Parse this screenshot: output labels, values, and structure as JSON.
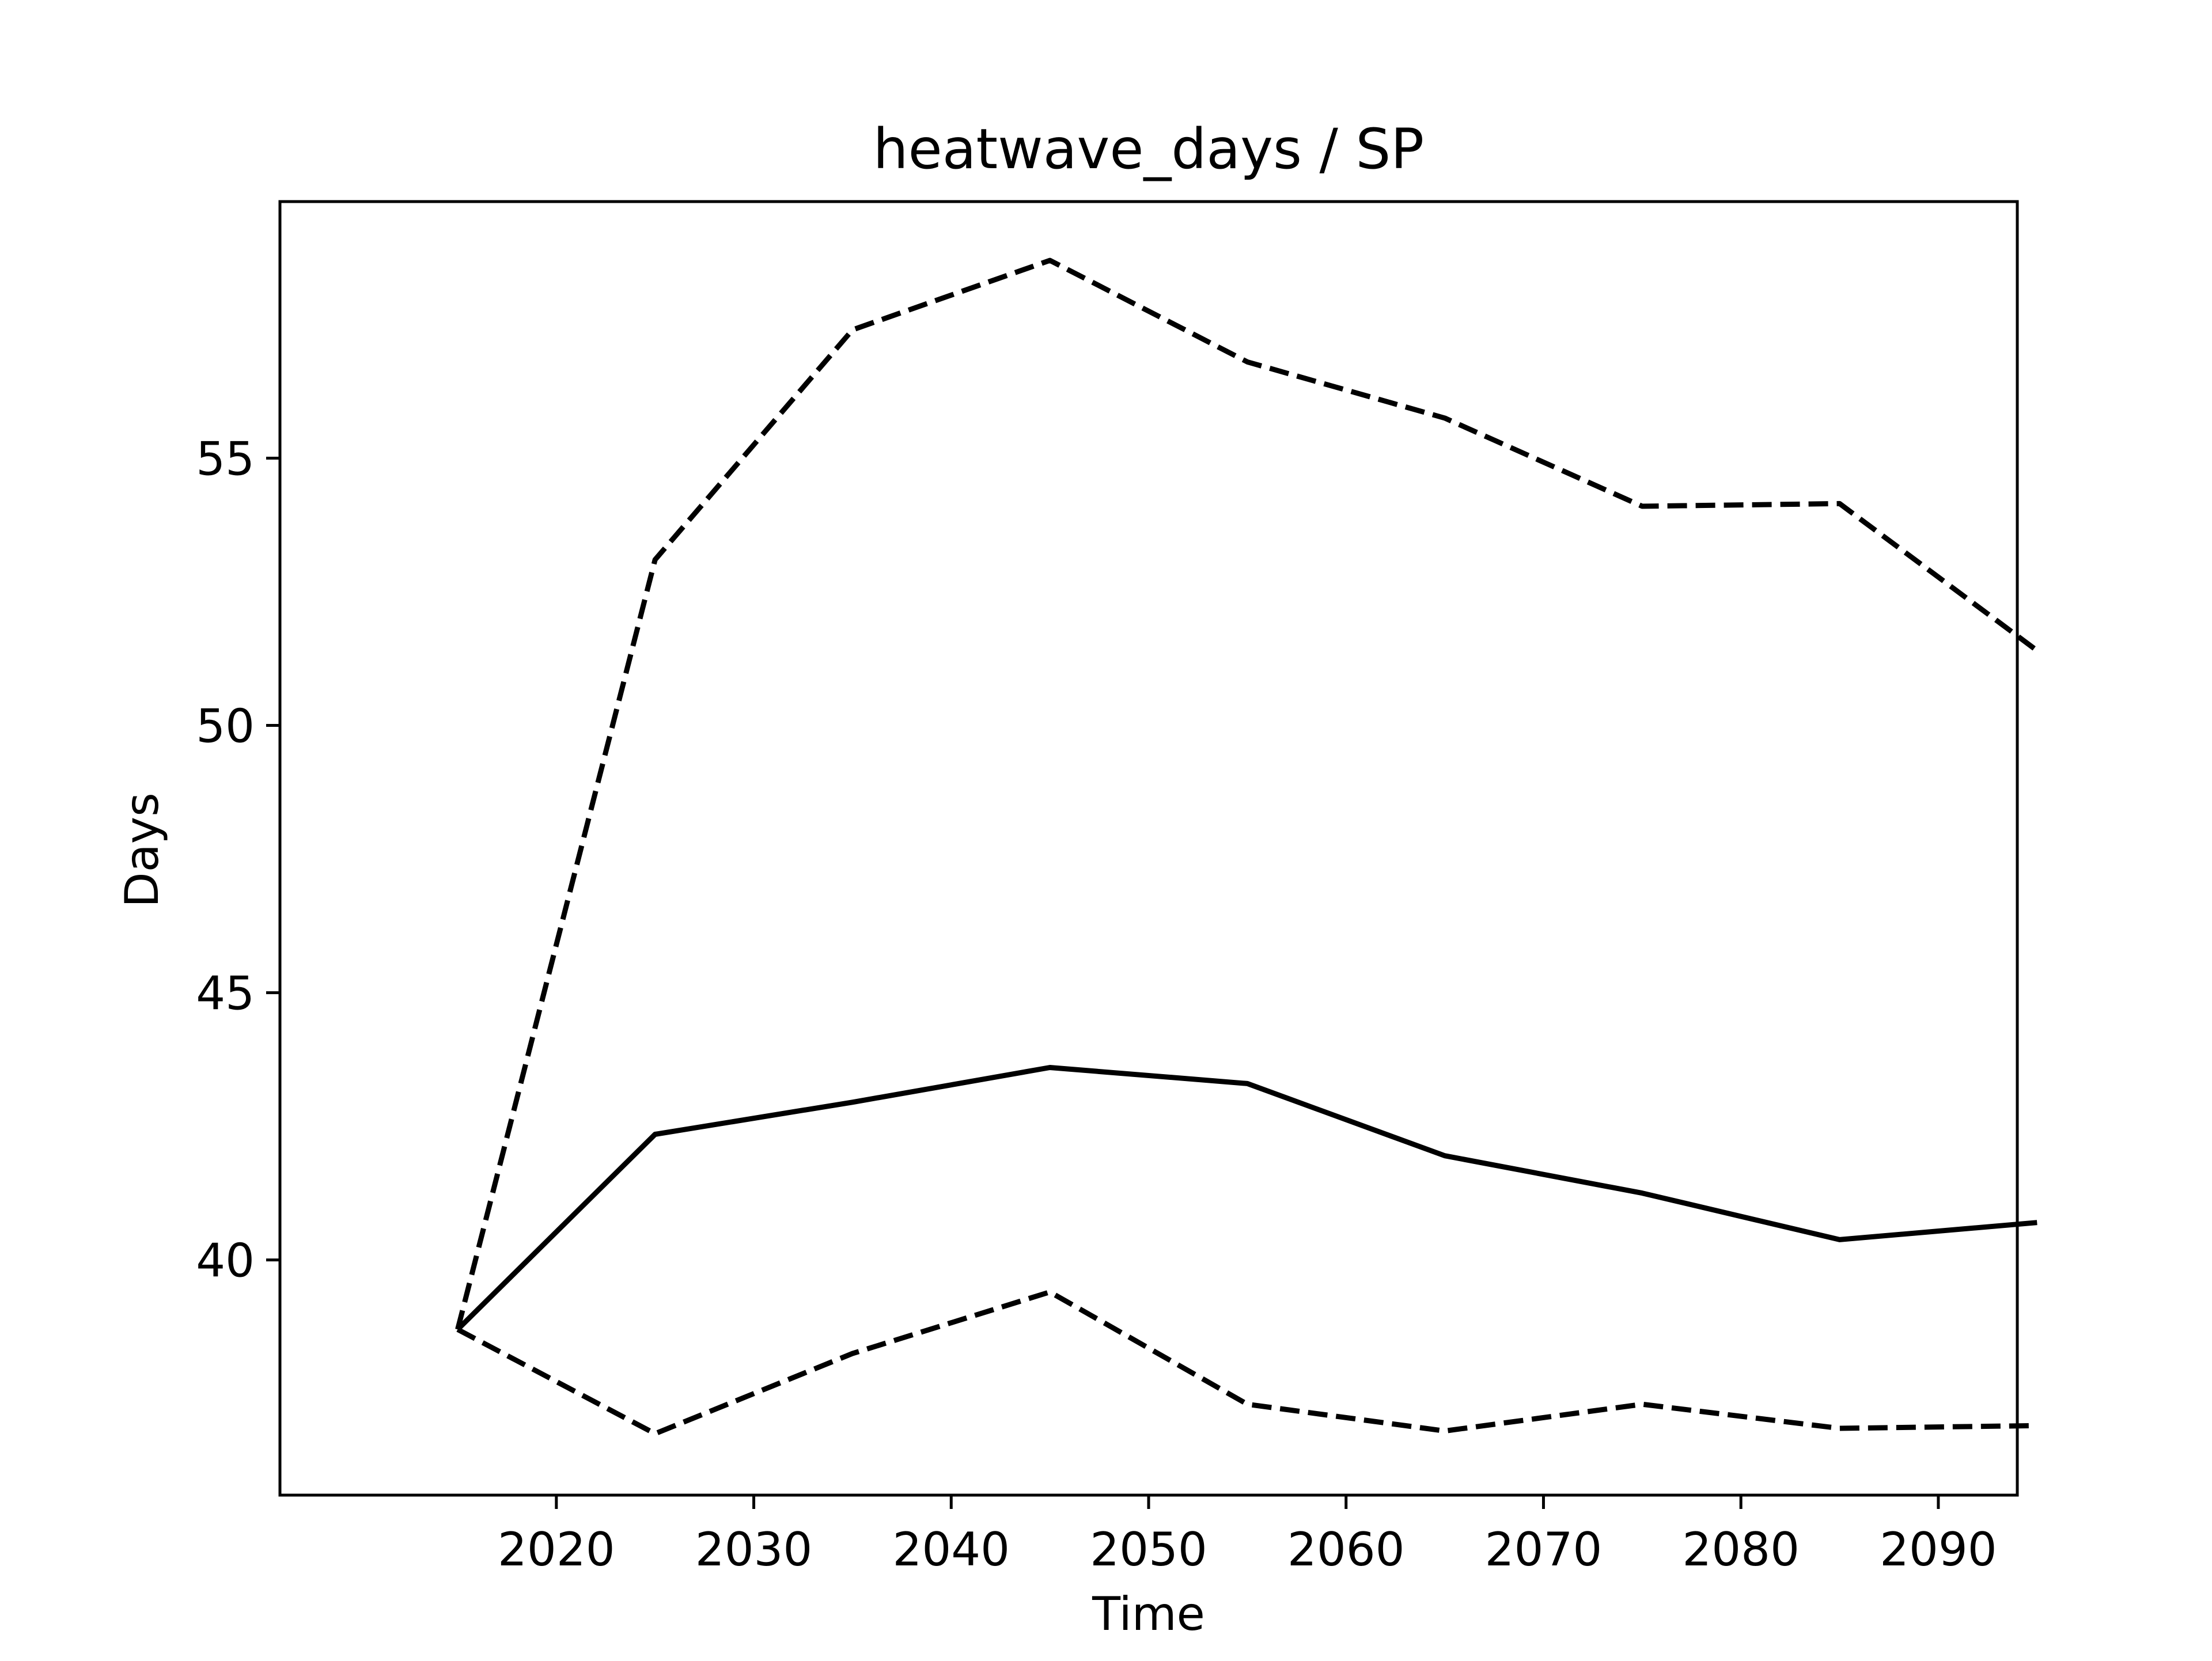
{
  "chart_data": {
    "type": "line",
    "title": "heatwave_days / SP",
    "xlabel": "Time",
    "ylabel": "Days",
    "x": [
      2015,
      2025,
      2035,
      2045,
      2055,
      2065,
      2075,
      2085,
      2095
    ],
    "xlim": [
      2006,
      2094
    ],
    "ylim": [
      35.6,
      59.8
    ],
    "xticks": [
      2020,
      2030,
      2040,
      2050,
      2060,
      2070,
      2080,
      2090
    ],
    "yticks": [
      40,
      45,
      50,
      55
    ],
    "grid": false,
    "legend": "none",
    "series": [
      {
        "style": "solid",
        "color": "#000000",
        "values": [
          38.7,
          42.35,
          42.95,
          43.6,
          43.3,
          41.95,
          41.25,
          40.38,
          40.7
        ]
      },
      {
        "style": "dashed",
        "color": "#000000",
        "values": [
          38.7,
          53.1,
          57.4,
          58.7,
          56.8,
          55.75,
          54.1,
          54.15,
          51.4
        ]
      },
      {
        "style": "dashed",
        "color": "#000000",
        "values": [
          38.7,
          36.75,
          38.25,
          39.4,
          37.3,
          36.8,
          37.3,
          36.85,
          36.9
        ]
      }
    ]
  }
}
